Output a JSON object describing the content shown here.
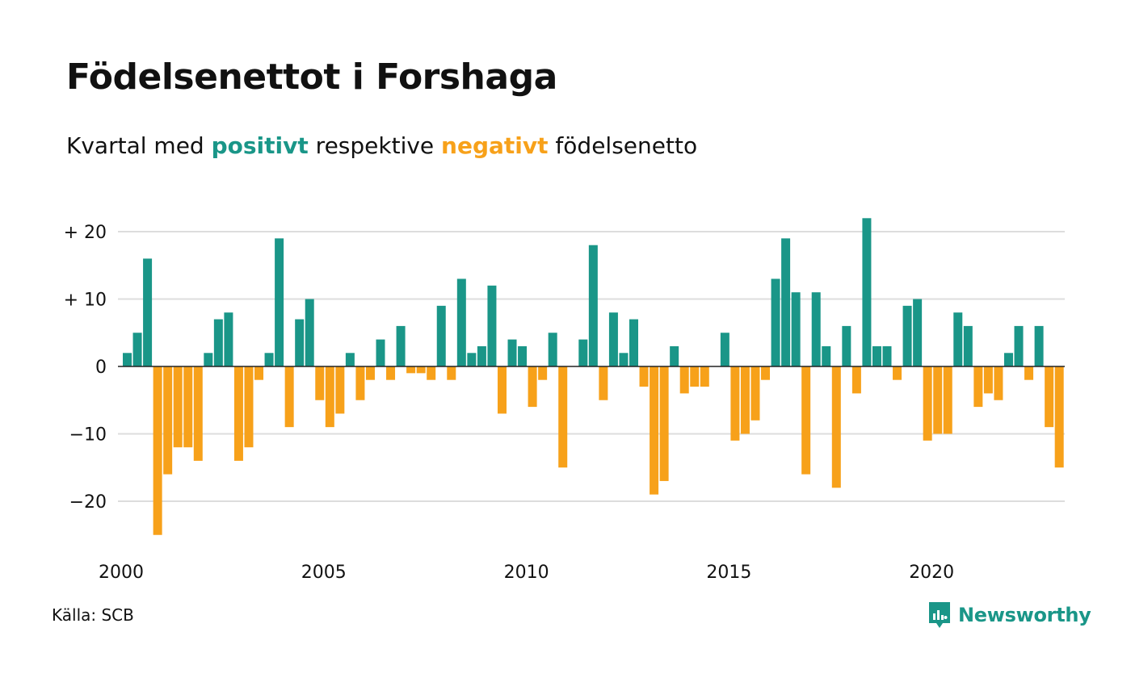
{
  "title": "Födelsenettot i Forshaga",
  "subtitle": {
    "prefix": "Kvartal med ",
    "positive_word": "positivt",
    "middle": " respektive ",
    "negative_word": "negativt",
    "suffix": " födelsenetto"
  },
  "source": "Källa: SCB",
  "brand": {
    "name": "Newsworthy",
    "icon": "newsworthy-logo-icon"
  },
  "colors": {
    "positive": "#1a9688",
    "negative": "#f7a11a",
    "grid": "#dddddd",
    "text": "#111111"
  },
  "chart_data": {
    "type": "bar",
    "x_start": "2000 Q1",
    "frequency": "quarterly",
    "values": [
      2,
      5,
      16,
      -25,
      -16,
      -12,
      -12,
      -14,
      2,
      7,
      8,
      -14,
      -12,
      -2,
      2,
      19,
      -9,
      7,
      10,
      -5,
      -9,
      -7,
      2,
      -5,
      -2,
      4,
      -2,
      6,
      -1,
      -1,
      -2,
      9,
      -2,
      13,
      2,
      3,
      12,
      -7,
      4,
      3,
      -6,
      -2,
      5,
      -15,
      0,
      4,
      18,
      -5,
      8,
      2,
      7,
      -3,
      -19,
      -17,
      3,
      -4,
      -3,
      -3,
      0,
      5,
      -11,
      -10,
      -8,
      -2,
      13,
      19,
      11,
      -16,
      11,
      3,
      -18,
      6,
      -4,
      22,
      3,
      3,
      -2,
      9,
      10,
      -11,
      -10,
      -10,
      8,
      6,
      -6,
      -4,
      -5,
      2,
      6,
      -2,
      6,
      -9,
      -15
    ],
    "y_ticks": [
      {
        "value": 20,
        "label": "+ 20"
      },
      {
        "value": 10,
        "label": "+ 10"
      },
      {
        "value": 0,
        "label": "0"
      },
      {
        "value": -10,
        "label": "−10"
      },
      {
        "value": -20,
        "label": "−20"
      }
    ],
    "x_ticks": [
      {
        "index": 0,
        "label": "2000"
      },
      {
        "index": 20,
        "label": "2005"
      },
      {
        "index": 40,
        "label": "2010"
      },
      {
        "index": 60,
        "label": "2015"
      },
      {
        "index": 80,
        "label": "2020"
      }
    ],
    "ylim": [
      -26,
      23
    ],
    "grid": true
  }
}
